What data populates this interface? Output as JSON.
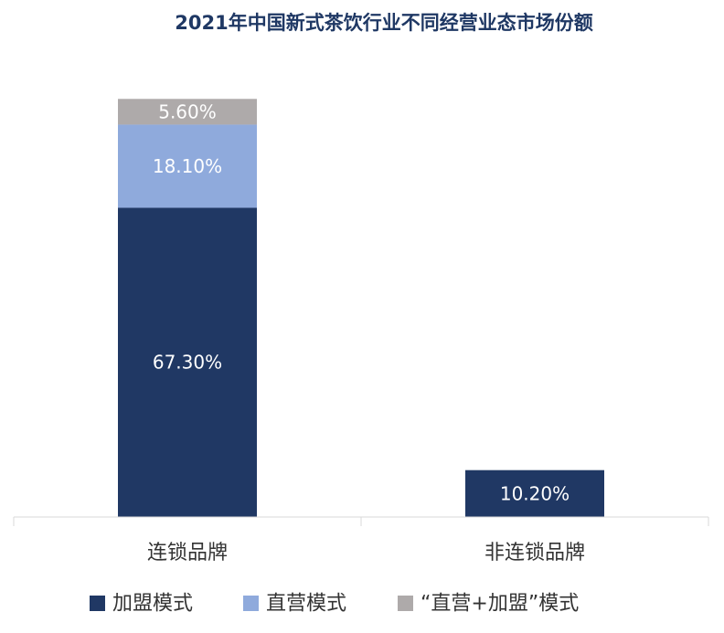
{
  "chart_data": {
    "type": "bar",
    "stacked": true,
    "title": "2021年中国新式茶饮行业不同经营业态市场份额",
    "categories": [
      "连锁品牌",
      "非连锁品牌"
    ],
    "series": [
      {
        "name": "加盟模式",
        "color": "#203864",
        "values": [
          67.3,
          10.2
        ],
        "labels": [
          "67.30%",
          "10.20%"
        ]
      },
      {
        "name": "直营模式",
        "color": "#8faadc",
        "values": [
          18.1,
          null
        ],
        "labels": [
          "18.10%",
          ""
        ]
      },
      {
        "name": "“直营+加盟”模式",
        "color": "#aeaaaa",
        "values": [
          5.6,
          null
        ],
        "labels": [
          "5.60%",
          ""
        ]
      }
    ],
    "ylim": [
      0,
      91
    ],
    "grid": false,
    "legend_position": "bottom"
  }
}
